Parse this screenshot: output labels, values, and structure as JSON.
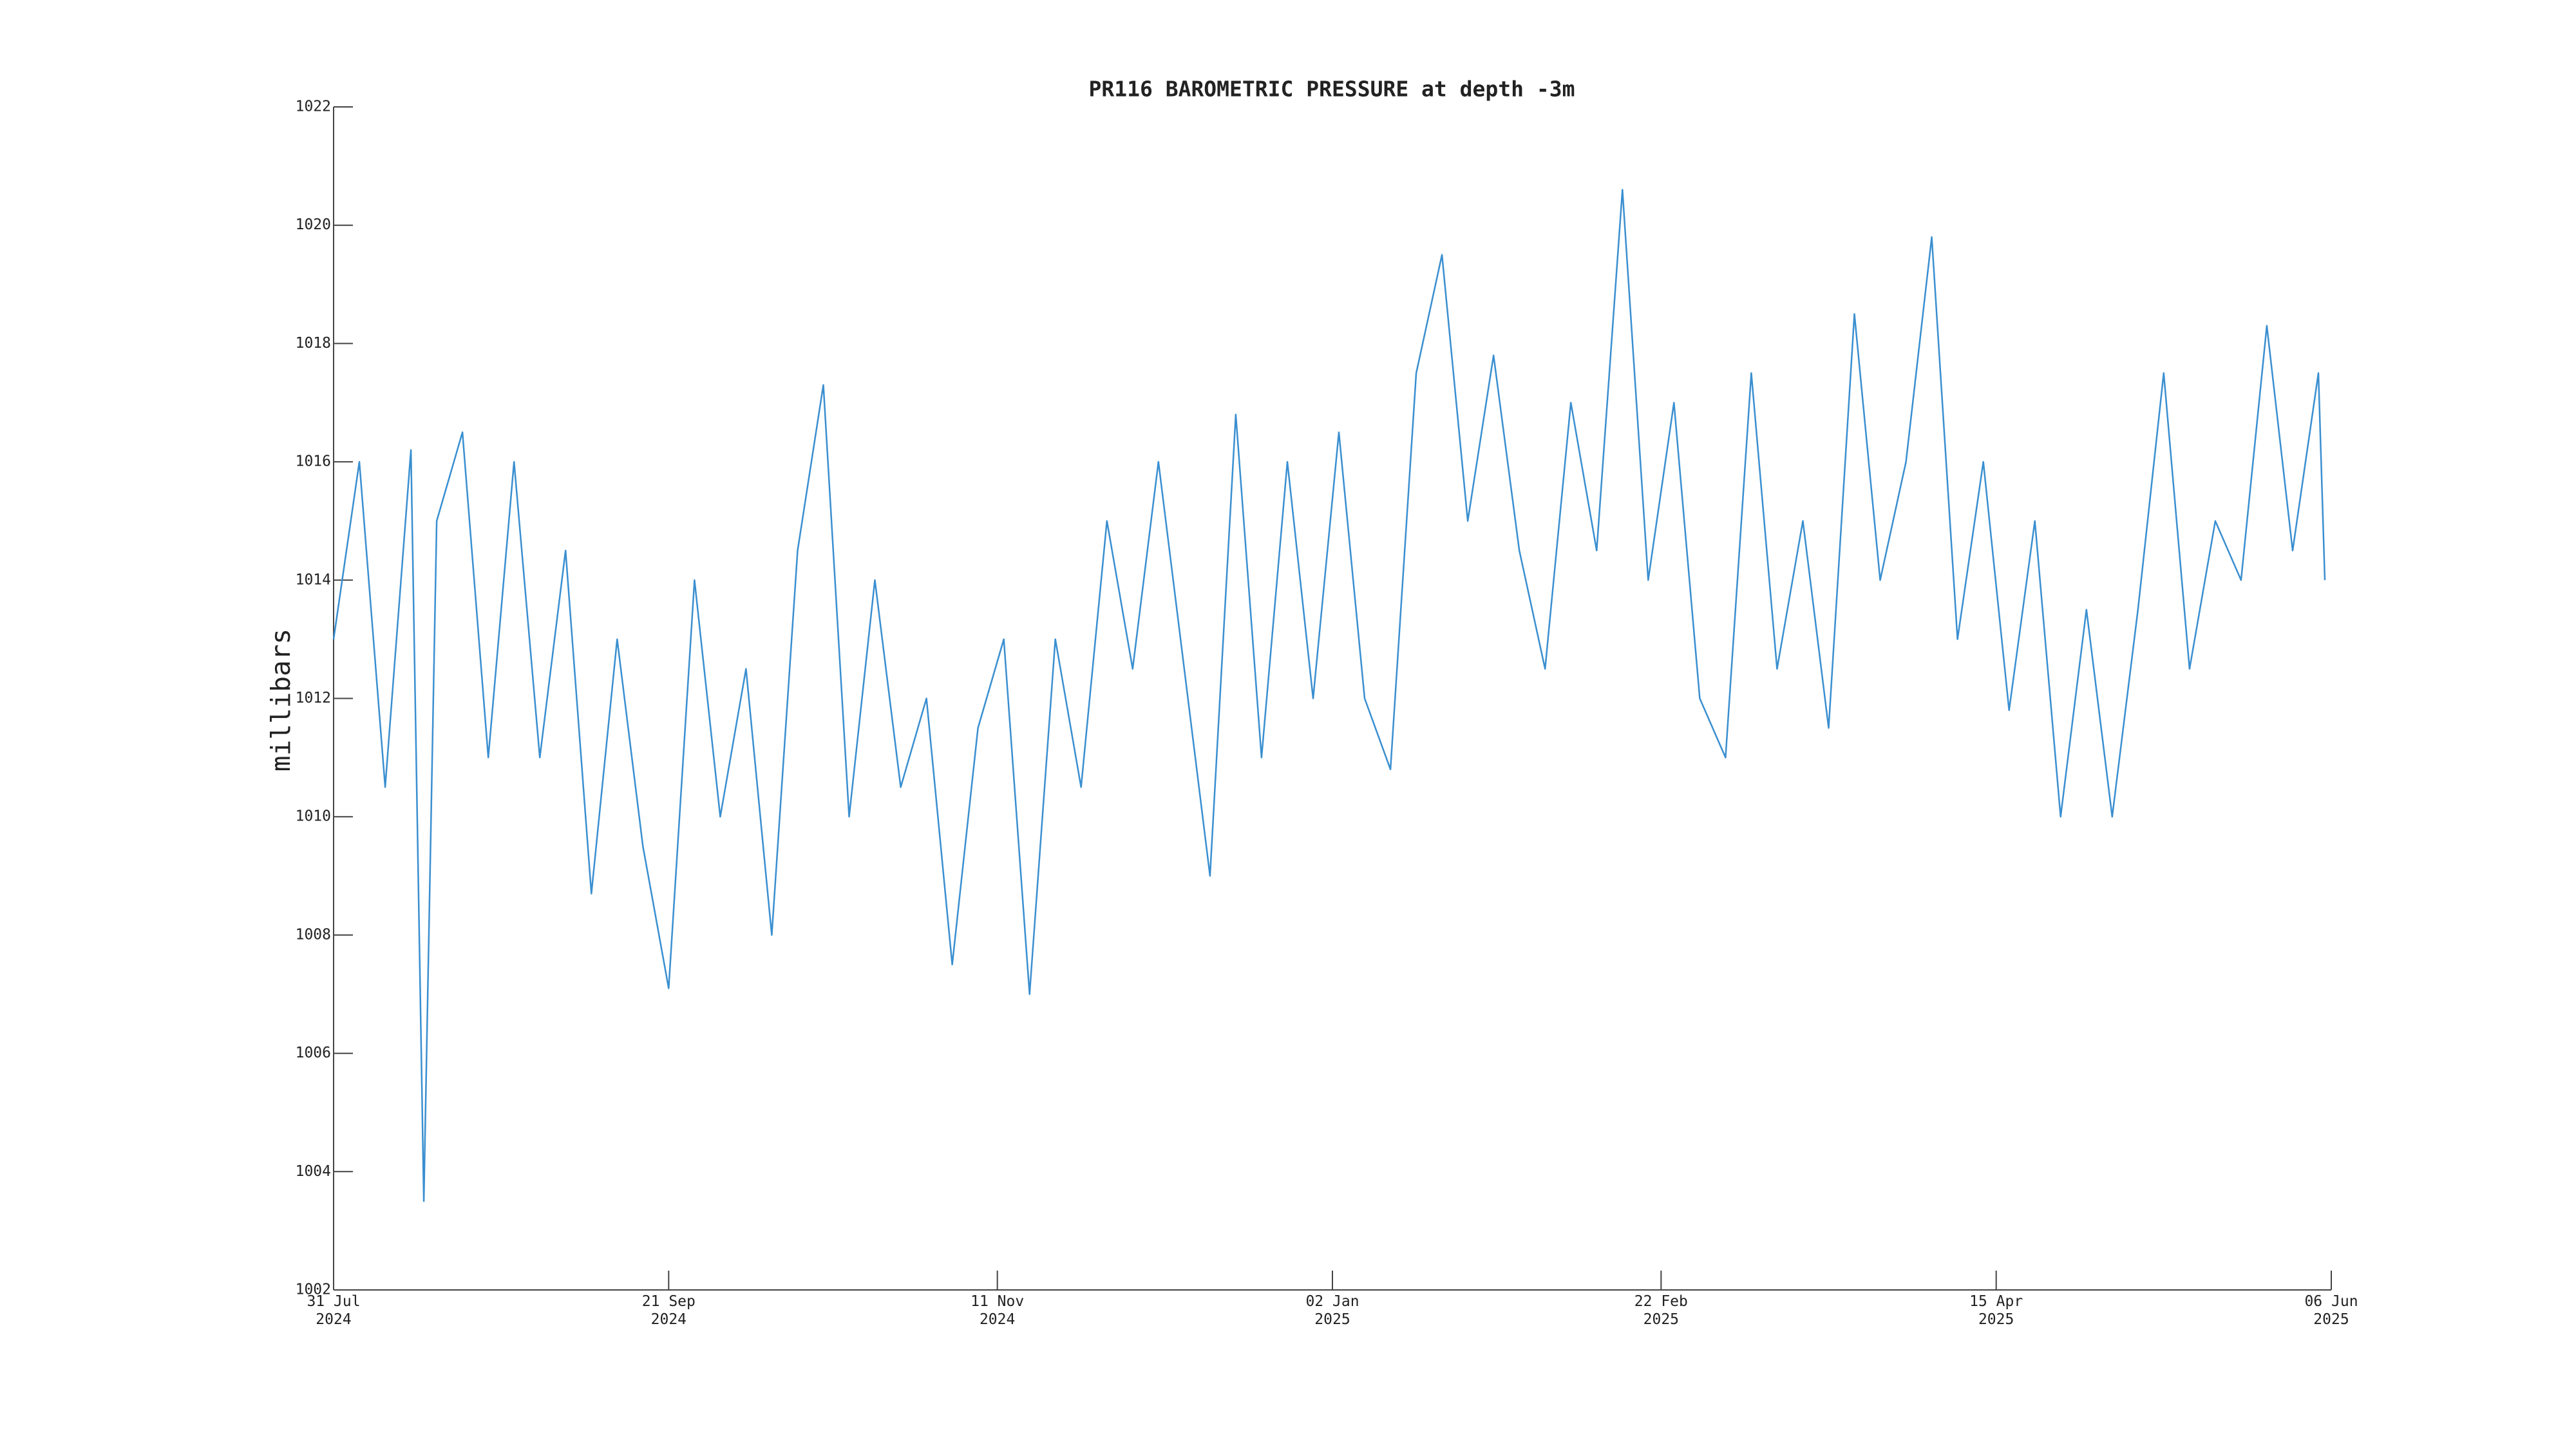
{
  "chart_data": {
    "type": "line",
    "title": "PR116 BAROMETRIC PRESSURE at depth -3m",
    "ylabel": "millibars",
    "x": [
      "2024-07-31",
      "2024-08-04",
      "2024-08-08",
      "2024-08-12",
      "2024-08-14",
      "2024-08-16",
      "2024-08-20",
      "2024-08-24",
      "2024-08-28",
      "2024-09-01",
      "2024-09-05",
      "2024-09-09",
      "2024-09-13",
      "2024-09-17",
      "2024-09-21",
      "2024-09-25",
      "2024-09-29",
      "2024-10-03",
      "2024-10-07",
      "2024-10-11",
      "2024-10-15",
      "2024-10-19",
      "2024-10-23",
      "2024-10-27",
      "2024-10-31",
      "2024-11-04",
      "2024-11-08",
      "2024-11-12",
      "2024-11-16",
      "2024-11-20",
      "2024-11-24",
      "2024-11-28",
      "2024-12-02",
      "2024-12-06",
      "2024-12-10",
      "2024-12-14",
      "2024-12-18",
      "2024-12-22",
      "2024-12-26",
      "2024-12-30",
      "2025-01-03",
      "2025-01-07",
      "2025-01-11",
      "2025-01-15",
      "2025-01-19",
      "2025-01-23",
      "2025-01-27",
      "2025-01-31",
      "2025-02-04",
      "2025-02-08",
      "2025-02-12",
      "2025-02-16",
      "2025-02-20",
      "2025-02-24",
      "2025-02-28",
      "2025-03-04",
      "2025-03-08",
      "2025-03-12",
      "2025-03-16",
      "2025-03-20",
      "2025-03-24",
      "2025-03-28",
      "2025-04-01",
      "2025-04-05",
      "2025-04-09",
      "2025-04-13",
      "2025-04-17",
      "2025-04-21",
      "2025-04-25",
      "2025-04-29",
      "2025-05-03",
      "2025-05-07",
      "2025-05-11",
      "2025-05-15",
      "2025-05-19",
      "2025-05-23",
      "2025-05-27",
      "2025-05-31",
      "2025-06-04",
      "2025-06-05"
    ],
    "series": [
      {
        "name": "BAROMETRIC PRESSURE",
        "color": "#3a8fd0",
        "values": [
          1013,
          1016,
          1010.5,
          1016.2,
          1003.5,
          1015,
          1016.5,
          1011,
          1016,
          1011,
          1014.5,
          1008.7,
          1013,
          1009.5,
          1007.1,
          1014,
          1010,
          1012.5,
          1008,
          1014.5,
          1017.3,
          1010,
          1014,
          1010.5,
          1012,
          1007.5,
          1011.5,
          1013,
          1007,
          1013,
          1010.5,
          1015,
          1012.5,
          1016,
          1012.5,
          1009,
          1016.8,
          1011,
          1016,
          1012,
          1016.5,
          1012,
          1010.8,
          1017.5,
          1019.5,
          1015,
          1017.8,
          1014.5,
          1012.5,
          1017,
          1014.5,
          1020.6,
          1014,
          1017,
          1012,
          1011,
          1017.5,
          1012.5,
          1015,
          1011.5,
          1018.5,
          1014,
          1016,
          1019.8,
          1013,
          1016,
          1011.8,
          1015,
          1010,
          1013.5,
          1010,
          1013.5,
          1017.5,
          1012.5,
          1015,
          1014,
          1018.3,
          1014.5,
          1017.5,
          1014
        ]
      }
    ],
    "xlim": [
      "2024-07-31",
      "2025-06-06"
    ],
    "xticks": [
      {
        "value": "2024-07-31",
        "label": "31 Jul\n2024"
      },
      {
        "value": "2024-09-21",
        "label": "21 Sep\n2024"
      },
      {
        "value": "2024-11-11",
        "label": "11 Nov\n2024"
      },
      {
        "value": "2025-01-02",
        "label": "02 Jan\n2025"
      },
      {
        "value": "2025-02-22",
        "label": "22 Feb\n2025"
      },
      {
        "value": "2025-04-15",
        "label": "15 Apr\n2025"
      },
      {
        "value": "2025-06-06",
        "label": "06 Jun\n2025"
      }
    ],
    "ylim": [
      1002,
      1022
    ],
    "yticks": [
      1002,
      1004,
      1006,
      1008,
      1010,
      1012,
      1014,
      1016,
      1018,
      1020,
      1022
    ]
  }
}
